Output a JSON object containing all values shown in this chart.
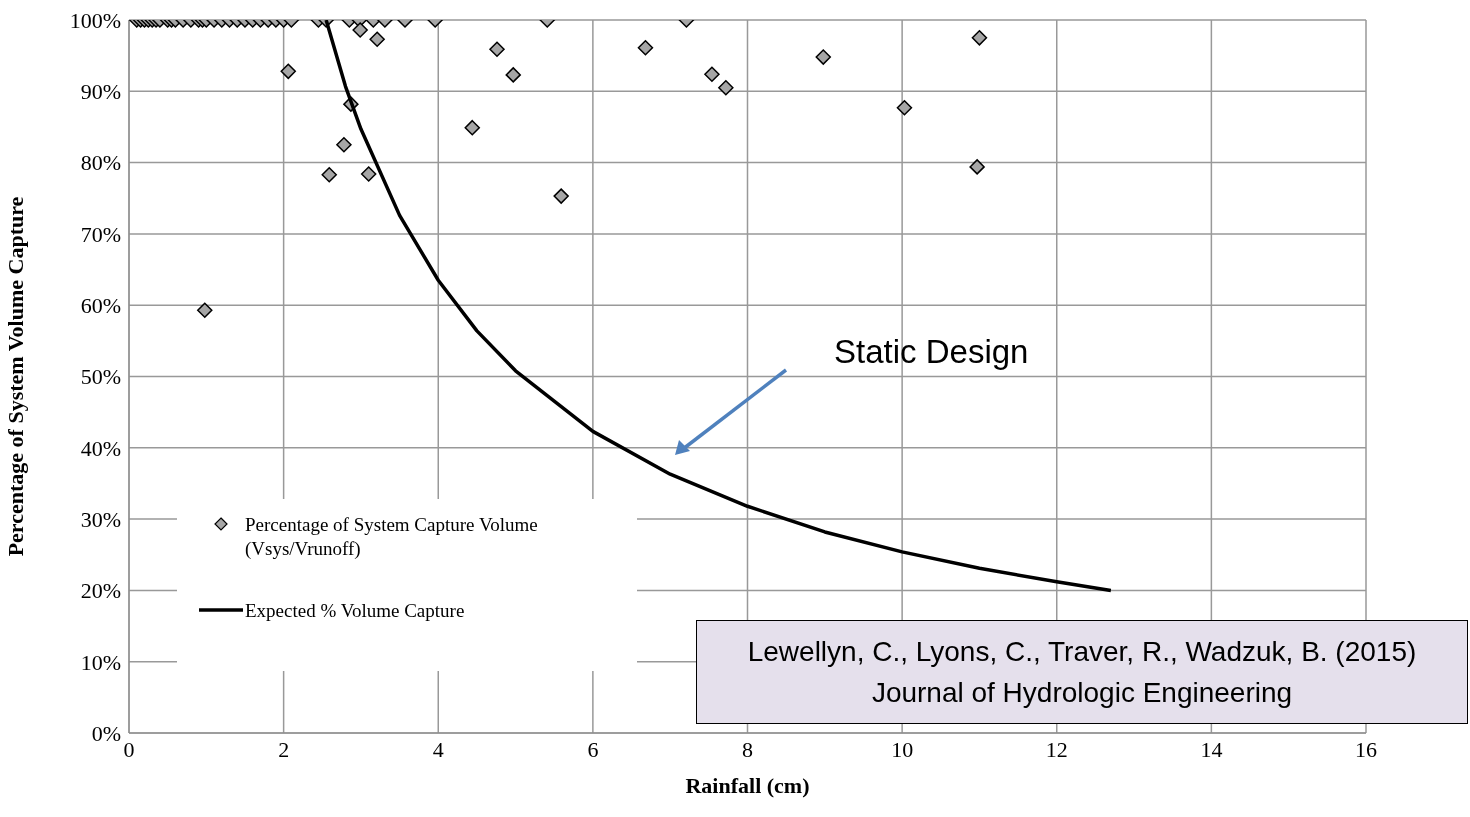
{
  "chart_data": {
    "type": "scatter",
    "xlabel": "Rainfall (cm)",
    "ylabel": "Percentage of System Volume Capture",
    "xlim": [
      0,
      16
    ],
    "xticks": [
      0,
      2,
      4,
      6,
      8,
      10,
      12,
      14,
      16
    ],
    "ylim": [
      0,
      100
    ],
    "yticks": [
      {
        "value": 0,
        "label": "0%"
      },
      {
        "value": 10,
        "label": "10%"
      },
      {
        "value": 20,
        "label": "20%"
      },
      {
        "value": 30,
        "label": "30%"
      },
      {
        "value": 40,
        "label": "40%"
      },
      {
        "value": 50,
        "label": "50%"
      },
      {
        "value": 60,
        "label": "60%"
      },
      {
        "value": 70,
        "label": "70%"
      },
      {
        "value": 80,
        "label": "80%"
      },
      {
        "value": 90,
        "label": "90%"
      },
      {
        "value": 100,
        "label": "100%"
      }
    ],
    "grid": true,
    "legend": "bottom left",
    "marker": "diamond",
    "series": [
      {
        "name": "Percentage of System Capture Volume (Vsys/Vrunoff)",
        "color": "#a6a6a6",
        "x": [
          0.1,
          0.15,
          0.2,
          0.25,
          0.3,
          0.35,
          0.4,
          0.5,
          0.55,
          0.6,
          0.7,
          0.8,
          0.9,
          0.95,
          1.0,
          1.1,
          1.2,
          1.3,
          1.4,
          1.5,
          1.6,
          1.7,
          1.8,
          1.9,
          2.0,
          2.1,
          2.45,
          2.55,
          2.85,
          2.98,
          3.16,
          3.31,
          3.57,
          3.96,
          5.41,
          7.21,
          2.06,
          2.59,
          2.78,
          2.87,
          2.99,
          3.1,
          3.21,
          0.98,
          4.44,
          4.76,
          4.97,
          5.59,
          6.68,
          7.54,
          7.72,
          8.98,
          10.03,
          11.0,
          10.97
        ],
        "values": [
          100,
          100,
          100,
          100,
          100,
          100,
          100,
          100,
          100,
          100,
          100,
          100,
          100,
          100,
          100,
          100,
          100,
          100,
          100,
          100,
          100,
          100,
          100,
          100,
          100,
          100,
          100,
          100,
          100,
          100,
          100,
          100,
          100,
          100,
          100,
          100,
          92.8,
          78.3,
          82.5,
          88.2,
          98.6,
          78.4,
          97.3,
          59.3,
          84.9,
          95.9,
          92.3,
          75.3,
          96.1,
          92.4,
          90.5,
          94.8,
          87.7,
          97.5,
          79.4
        ]
      },
      {
        "name": "Expected % Volume Capture",
        "type": "line",
        "color": "#000000",
        "marker": "none",
        "line_style": "solid",
        "x": [
          2.55,
          2.8,
          3,
          3.5,
          4,
          4.5,
          5,
          6,
          7,
          8,
          9,
          10,
          11,
          12,
          12.7
        ],
        "values": [
          100,
          90.7,
          84.7,
          72.6,
          63.5,
          56.4,
          50.8,
          42.3,
          36.3,
          31.8,
          28.2,
          25.4,
          23.1,
          21.2,
          20
        ]
      }
    ],
    "annotations": [
      "Static Design",
      "Lewellyn, C., Lyons, C., Traver, R., Wadzuk, B. (2015)\nJournal of Hydrologic Engineering"
    ]
  }
}
